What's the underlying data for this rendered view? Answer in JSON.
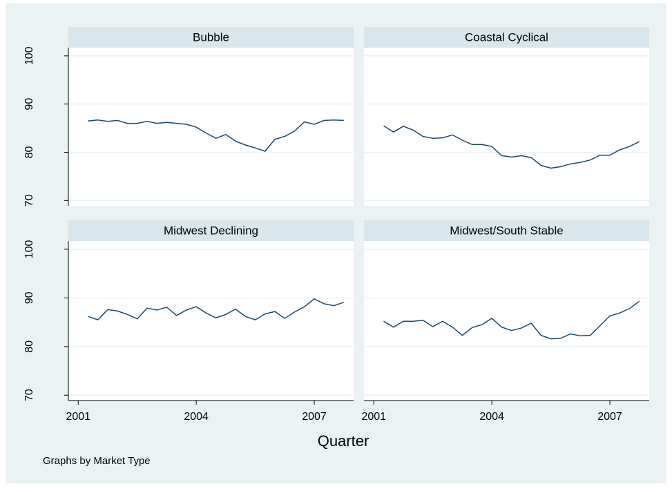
{
  "chart_data": [
    {
      "type": "line",
      "title": "Bubble",
      "x": [
        2001.25,
        2001.5,
        2001.75,
        2002,
        2002.25,
        2002.5,
        2002.75,
        2003,
        2003.25,
        2003.5,
        2003.75,
        2004,
        2004.25,
        2004.5,
        2004.75,
        2005,
        2005.25,
        2005.5,
        2005.75,
        2006,
        2006.25,
        2006.5,
        2006.75,
        2007,
        2007.25,
        2007.5,
        2007.75
      ],
      "values": [
        86.5,
        86.7,
        86.4,
        86.6,
        86.0,
        86.0,
        86.4,
        86.0,
        86.2,
        86.0,
        85.8,
        85.2,
        84.0,
        82.9,
        83.7,
        82.3,
        81.5,
        80.9,
        80.2,
        82.7,
        83.3,
        84.4,
        86.3,
        85.8,
        86.6,
        86.7,
        86.6
      ],
      "color": "#1a476f",
      "xlim": [
        2000.75,
        2008.0
      ],
      "ylim": [
        68.9,
        101.7
      ],
      "yticks": [
        70,
        80,
        90,
        100
      ],
      "grid": true
    },
    {
      "type": "line",
      "title": "Coastal Cyclical",
      "x": [
        2001.25,
        2001.5,
        2001.75,
        2002,
        2002.25,
        2002.5,
        2002.75,
        2003,
        2003.25,
        2003.5,
        2003.75,
        2004,
        2004.25,
        2004.5,
        2004.75,
        2005,
        2005.25,
        2005.5,
        2005.75,
        2006,
        2006.25,
        2006.5,
        2006.75,
        2007,
        2007.25,
        2007.5,
        2007.75
      ],
      "values": [
        85.5,
        84.2,
        85.4,
        84.6,
        83.3,
        82.9,
        83.0,
        83.6,
        82.5,
        81.6,
        81.6,
        81.2,
        79.3,
        79.0,
        79.3,
        78.9,
        77.3,
        76.7,
        77.0,
        77.6,
        77.9,
        78.4,
        79.4,
        79.4,
        80.5,
        81.2,
        82.2
      ],
      "color": "#1a476f",
      "xlim": [
        2000.75,
        2008.0
      ],
      "ylim": [
        68.9,
        101.7
      ],
      "yticks": [
        70,
        80,
        90,
        100
      ],
      "grid": true
    },
    {
      "type": "line",
      "title": "Midwest Declining",
      "x": [
        2001.25,
        2001.5,
        2001.75,
        2002,
        2002.25,
        2002.5,
        2002.75,
        2003,
        2003.25,
        2003.5,
        2003.75,
        2004,
        2004.25,
        2004.5,
        2004.75,
        2005,
        2005.25,
        2005.5,
        2005.75,
        2006,
        2006.25,
        2006.5,
        2006.75,
        2007,
        2007.25,
        2007.5,
        2007.75
      ],
      "values": [
        86.2,
        85.5,
        87.6,
        87.3,
        86.6,
        85.7,
        87.9,
        87.5,
        88.1,
        86.4,
        87.5,
        88.2,
        86.9,
        85.9,
        86.6,
        87.7,
        86.2,
        85.5,
        86.7,
        87.2,
        85.8,
        87.1,
        88.2,
        89.8,
        88.8,
        88.4,
        89.1
      ],
      "color": "#1a476f",
      "xlim": [
        2000.75,
        2008.0
      ],
      "ylim": [
        68.9,
        101.7
      ],
      "yticks": [
        70,
        80,
        90,
        100
      ],
      "xticks": [
        2001,
        2004,
        2007
      ],
      "grid": true
    },
    {
      "type": "line",
      "title": "Midwest/South Stable",
      "x": [
        2001.25,
        2001.5,
        2001.75,
        2002,
        2002.25,
        2002.5,
        2002.75,
        2003,
        2003.25,
        2003.5,
        2003.75,
        2004,
        2004.25,
        2004.5,
        2004.75,
        2005,
        2005.25,
        2005.5,
        2005.75,
        2006,
        2006.25,
        2006.5,
        2006.75,
        2007,
        2007.25,
        2007.5,
        2007.75
      ],
      "values": [
        85.2,
        84.0,
        85.2,
        85.2,
        85.4,
        84.1,
        85.2,
        84.0,
        82.3,
        83.9,
        84.5,
        85.8,
        84.0,
        83.3,
        83.8,
        84.8,
        82.3,
        81.6,
        81.7,
        82.6,
        82.2,
        82.3,
        84.3,
        86.3,
        86.9,
        87.8,
        89.3
      ],
      "color": "#1a476f",
      "xlim": [
        2000.75,
        2008.0
      ],
      "ylim": [
        68.9,
        101.7
      ],
      "yticks": [
        70,
        80,
        90,
        100
      ],
      "xticks": [
        2001,
        2004,
        2007
      ],
      "grid": true
    }
  ],
  "x_label": "Quarter",
  "note": "Graphs by Market Type"
}
